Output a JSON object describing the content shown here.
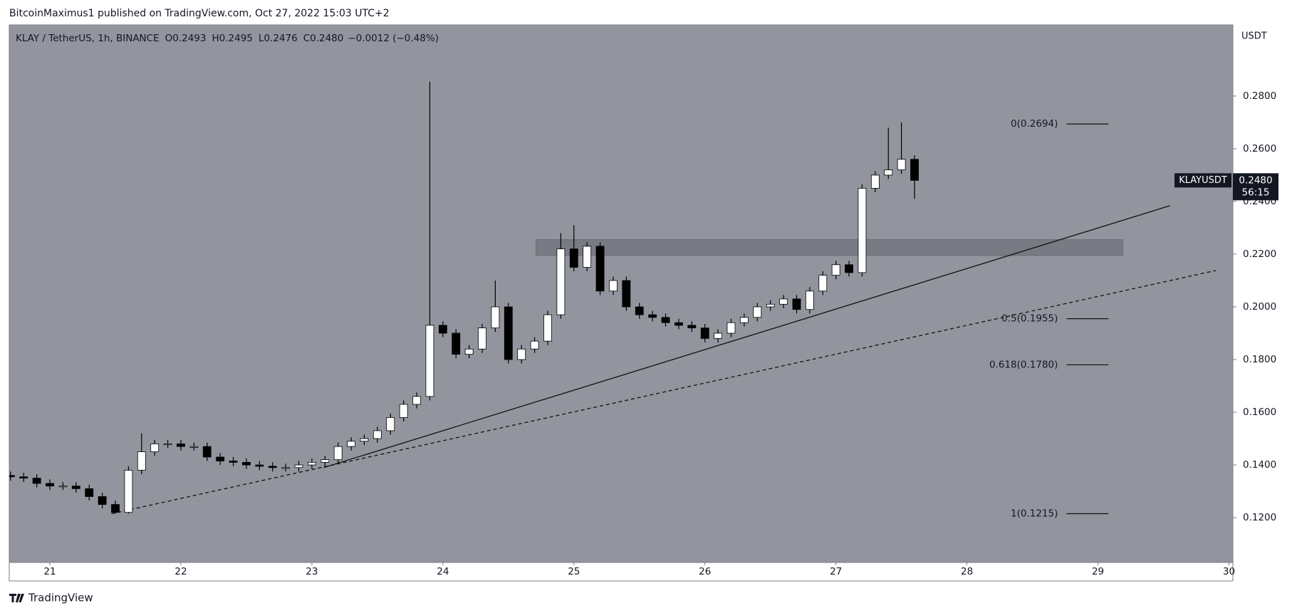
{
  "header": "BitcoinMaximus1 published on TradingView.com, Oct 27, 2022 15:03 UTC+2",
  "footer": "TradingView",
  "chart_data": {
    "type": "candlestick",
    "title": "KLAY / TetherUS, 1h, BINANCE",
    "legend_items": [
      {
        "key": "O",
        "text": "0.2493"
      },
      {
        "key": "H",
        "text": "0.2495"
      },
      {
        "key": "L",
        "text": "0.2476"
      },
      {
        "key": "C",
        "text": "0.2480"
      }
    ],
    "change": "−0.0012 (−0.48%)",
    "y_axis_label": "USDT",
    "background": "#93959e",
    "up_color": "#ffffff",
    "down_color": "#000000",
    "x": [
      20.7,
      20.8,
      20.9,
      21.0,
      21.1,
      21.2,
      21.3,
      21.4,
      21.5,
      21.6,
      21.7,
      21.8,
      21.9,
      22.0,
      22.1,
      22.2,
      22.3,
      22.4,
      22.5,
      22.6,
      22.7,
      22.8,
      22.9,
      23.0,
      23.1,
      23.2,
      23.3,
      23.4,
      23.5,
      23.6,
      23.7,
      23.8,
      23.9,
      24.0,
      24.1,
      24.2,
      24.3,
      24.4,
      24.5,
      24.6,
      24.7,
      24.8,
      24.9,
      25.0,
      25.1,
      25.2,
      25.3,
      25.4,
      25.5,
      25.6,
      25.7,
      25.8,
      25.9,
      26.0,
      26.1,
      26.2,
      26.3,
      26.4,
      26.5,
      26.6,
      26.7,
      26.8,
      26.9,
      27.0,
      27.1,
      27.2,
      27.3,
      27.4,
      27.5,
      27.6
    ],
    "open": [
      0.136,
      0.1355,
      0.135,
      0.133,
      0.132,
      0.132,
      0.131,
      0.128,
      0.125,
      0.122,
      0.138,
      0.145,
      0.148,
      0.148,
      0.147,
      0.147,
      0.143,
      0.1415,
      0.141,
      0.14,
      0.1395,
      0.139,
      0.139,
      0.14,
      0.141,
      0.142,
      0.147,
      0.149,
      0.15,
      0.153,
      0.158,
      0.163,
      0.166,
      0.193,
      0.19,
      0.182,
      0.184,
      0.192,
      0.2,
      0.18,
      0.184,
      0.187,
      0.197,
      0.222,
      0.215,
      0.223,
      0.206,
      0.21,
      0.2,
      0.197,
      0.196,
      0.194,
      0.193,
      0.192,
      0.188,
      0.19,
      0.194,
      0.196,
      0.2,
      0.201,
      0.203,
      0.199,
      0.206,
      0.212,
      0.216,
      0.213,
      0.245,
      0.25,
      0.252,
      0.256
    ],
    "high": [
      0.1375,
      0.137,
      0.1365,
      0.1345,
      0.1335,
      0.1335,
      0.1325,
      0.1295,
      0.1265,
      0.1395,
      0.152,
      0.1495,
      0.1495,
      0.1495,
      0.1485,
      0.1485,
      0.1445,
      0.143,
      0.1425,
      0.1415,
      0.141,
      0.1405,
      0.1415,
      0.1425,
      0.1435,
      0.1485,
      0.1505,
      0.1515,
      0.1545,
      0.1595,
      0.1645,
      0.1675,
      0.2855,
      0.1945,
      0.1915,
      0.1855,
      0.1935,
      0.21,
      0.2015,
      0.1855,
      0.1885,
      0.1985,
      0.228,
      0.231,
      0.2245,
      0.2245,
      0.2115,
      0.2115,
      0.2015,
      0.1985,
      0.1975,
      0.1955,
      0.1945,
      0.1935,
      0.1915,
      0.1955,
      0.1975,
      0.2015,
      0.2025,
      0.2045,
      0.2045,
      0.2075,
      0.2135,
      0.2175,
      0.2175,
      0.2465,
      0.2515,
      0.268,
      0.27,
      0.2575
    ],
    "low": [
      0.134,
      0.1335,
      0.1315,
      0.1305,
      0.1305,
      0.1295,
      0.1265,
      0.1235,
      0.1215,
      0.1215,
      0.1365,
      0.1435,
      0.1465,
      0.1455,
      0.1455,
      0.1415,
      0.14,
      0.1395,
      0.1385,
      0.138,
      0.1375,
      0.1375,
      0.1375,
      0.1385,
      0.1395,
      0.1405,
      0.1455,
      0.1475,
      0.1485,
      0.1515,
      0.1565,
      0.1615,
      0.1645,
      0.1885,
      0.1805,
      0.1805,
      0.1825,
      0.1905,
      0.1785,
      0.1785,
      0.1825,
      0.1855,
      0.1955,
      0.2135,
      0.2135,
      0.2045,
      0.2045,
      0.1985,
      0.1955,
      0.1945,
      0.1925,
      0.1915,
      0.1905,
      0.1865,
      0.1865,
      0.1885,
      0.1925,
      0.1945,
      0.1985,
      0.1995,
      0.1975,
      0.1975,
      0.2045,
      0.2105,
      0.2115,
      0.2115,
      0.2435,
      0.2485,
      0.2505,
      0.241
    ],
    "close": [
      0.1355,
      0.135,
      0.133,
      0.132,
      0.132,
      0.131,
      0.128,
      0.125,
      0.122,
      0.138,
      0.145,
      0.148,
      0.148,
      0.147,
      0.147,
      0.143,
      0.1415,
      0.141,
      0.14,
      0.1395,
      0.139,
      0.139,
      0.14,
      0.141,
      0.142,
      0.147,
      0.149,
      0.15,
      0.153,
      0.158,
      0.163,
      0.166,
      0.193,
      0.19,
      0.182,
      0.184,
      0.192,
      0.2,
      0.18,
      0.184,
      0.187,
      0.197,
      0.222,
      0.215,
      0.223,
      0.206,
      0.21,
      0.2,
      0.197,
      0.196,
      0.194,
      0.193,
      0.192,
      0.188,
      0.19,
      0.194,
      0.196,
      0.2,
      0.201,
      0.203,
      0.199,
      0.206,
      0.212,
      0.216,
      0.213,
      0.245,
      0.25,
      0.252,
      0.256,
      0.248
    ],
    "xlim": [
      20.69,
      30.03
    ],
    "xticks": [
      21,
      22,
      23,
      24,
      25,
      26,
      27,
      28,
      29,
      30
    ],
    "ylim": [
      0.103,
      0.307
    ],
    "yticks": [
      {
        "value": 0.12,
        "label": "0.1200"
      },
      {
        "value": 0.14,
        "label": "0.1400"
      },
      {
        "value": 0.16,
        "label": "0.1600"
      },
      {
        "value": 0.18,
        "label": "0.1800"
      },
      {
        "value": 0.2,
        "label": "0.2000"
      },
      {
        "value": 0.22,
        "label": "0.2200"
      },
      {
        "value": 0.24,
        "label": "0.2400"
      },
      {
        "value": 0.26,
        "label": "0.2600"
      },
      {
        "value": 0.28,
        "label": "0.2800"
      }
    ],
    "last_price": {
      "symbol": "KLAYUSDT",
      "value": 0.248,
      "label": "0.2480",
      "countdown": "56:15"
    },
    "fib_x": [
      28.76,
      29.08
    ],
    "fib_levels": [
      {
        "value": 0.2694,
        "label": "0(0.2694)"
      },
      {
        "value": 0.1955,
        "label": "0.5(0.1955)"
      },
      {
        "value": 0.178,
        "label": "0.618(0.1780)"
      },
      {
        "value": 0.1215,
        "label": "1(0.1215)"
      }
    ],
    "zone": {
      "x": [
        24.71,
        29.19
      ],
      "y": [
        0.2195,
        0.2255
      ]
    },
    "trendlines": [
      {
        "x": [
          23.09,
          29.55
        ],
        "y": [
          0.139,
          0.2384
        ],
        "style": "solid"
      },
      {
        "x": [
          21.47,
          29.9
        ],
        "y": [
          0.1215,
          0.2138
        ],
        "style": "dashed"
      }
    ]
  }
}
